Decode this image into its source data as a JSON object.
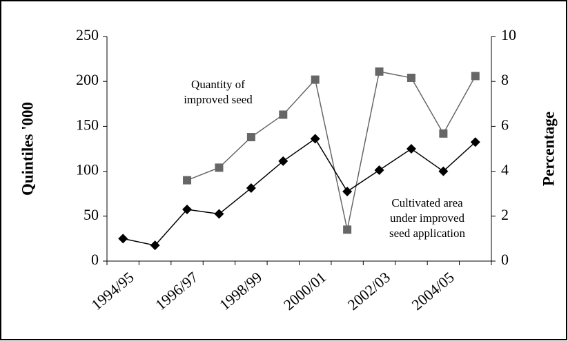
{
  "chart_data": {
    "type": "line",
    "categories": [
      "1994/95",
      null,
      "1996/97",
      null,
      "1998/99",
      null,
      "2000/01",
      null,
      "2002/03",
      null,
      "2004/05",
      null
    ],
    "y_label": "Quintiles '000",
    "y2_label": "Percentage",
    "ylim": [
      0,
      250
    ],
    "yticks": [
      0,
      50,
      100,
      150,
      200,
      250
    ],
    "y2lim": [
      0,
      10
    ],
    "y2ticks": [
      0,
      2,
      4,
      6,
      8,
      10
    ],
    "annotations": [
      [
        "Quantity of",
        "improved seed"
      ],
      [
        "Cultivated area",
        "under improved",
        "seed application"
      ]
    ],
    "series": [
      {
        "name": "Quantity of improved seed",
        "color": "#666666",
        "marker": "square",
        "values": [
          null,
          null,
          90,
          104,
          138,
          163,
          202,
          35,
          211,
          204,
          142,
          206
        ]
      },
      {
        "name": "Cultivated area under improved seed application",
        "color": "#000000",
        "marker": "diamond",
        "axis": "y2",
        "values": [
          1.0,
          0.7,
          2.3,
          2.1,
          3.25,
          4.45,
          5.45,
          3.1,
          4.05,
          5.0,
          4.0,
          5.3
        ]
      }
    ]
  }
}
